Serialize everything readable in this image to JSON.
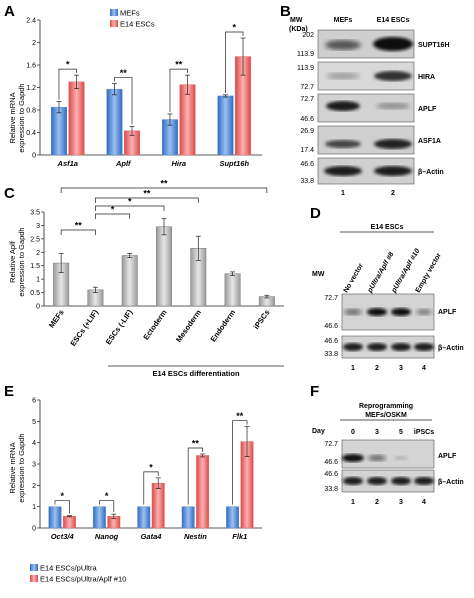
{
  "panels": {
    "A": {
      "label": "A",
      "ylabel_lines": [
        "Relative mRNA",
        "expression to Gapdh"
      ],
      "legend": [
        "MEFs",
        "E14 ESCs"
      ],
      "colors": {
        "s1": "#5b8fd6",
        "s2": "#e86a6a"
      },
      "chart_data": {
        "type": "bar",
        "categories": [
          "Asf1a",
          "Aplf",
          "Hira",
          "Supt16h"
        ],
        "series": [
          {
            "name": "MEFs",
            "values": [
              0.85,
              1.17,
              0.63,
              1.05
            ],
            "err": [
              0.1,
              0.1,
              0.1,
              0.02
            ]
          },
          {
            "name": "E14 ESCs",
            "values": [
              1.3,
              0.43,
              1.25,
              1.75
            ],
            "err": [
              0.12,
              0.08,
              0.17,
              0.33
            ]
          }
        ],
        "ylim": [
          0,
          2.4
        ],
        "yticks": [
          "0",
          "0.4",
          "0.8",
          "1.2",
          "1.6",
          "2",
          "2.4"
        ],
        "significance": [
          "*",
          "**",
          "**",
          "*"
        ]
      }
    },
    "B": {
      "label": "B",
      "mw_header": [
        "MW",
        "(KDa)"
      ],
      "lanes": [
        "MEFs",
        "E14 ESCs"
      ],
      "lane_numbers": [
        "1",
        "2"
      ],
      "blots": [
        {
          "name": "SUPT16H",
          "mw": [
            "202",
            "113.9"
          ]
        },
        {
          "name": "HIRA",
          "mw": [
            "113.9",
            "72.7"
          ]
        },
        {
          "name": "APLF",
          "mw": [
            "72.7",
            "46.6"
          ]
        },
        {
          "name": "ASF1A",
          "mw": [
            "26.9",
            "17.4"
          ]
        },
        {
          "name": "β–Actin",
          "mw": [
            "46.6",
            "33.8"
          ]
        }
      ]
    },
    "C": {
      "label": "C",
      "ylabel_lines": [
        "Relative Aplf",
        "expression to Gapdh"
      ],
      "color": "#c8c8c8",
      "group_label": "E14 ESCs differentiation",
      "chart_data": {
        "type": "bar",
        "categories": [
          "MEFs",
          "ESCs (+LIF)",
          "ESCs (-LIF)",
          "Ectoderm",
          "Mesoderm",
          "Endoderm",
          "iPSCs"
        ],
        "values": [
          1.6,
          0.6,
          1.88,
          2.95,
          2.15,
          1.2,
          0.35
        ],
        "err": [
          0.35,
          0.1,
          0.08,
          0.3,
          0.45,
          0.07,
          0.05
        ],
        "ylim": [
          0,
          3.5
        ],
        "yticks": [
          "0",
          "0.5",
          "1",
          "1.5",
          "2",
          "2.5",
          "3",
          "3.5"
        ],
        "significance": [
          {
            "pair": [
              0,
              1
            ],
            "label": "**"
          },
          {
            "pair": [
              1,
              2
            ],
            "label": "*"
          },
          {
            "pair": [
              1,
              3
            ],
            "label": "*"
          },
          {
            "pair": [
              1,
              4
            ],
            "label": "**"
          },
          {
            "pair": [
              0,
              6
            ],
            "label": "**"
          }
        ]
      }
    },
    "D": {
      "label": "D",
      "group": "E14 ESCs",
      "mw_header": "MW",
      "lanes": [
        "No vector",
        "pUltra/Aplf #8",
        "pUltra/Aplf #10",
        "Empty vector"
      ],
      "lane_numbers": [
        "1",
        "2",
        "3",
        "4"
      ],
      "blots": [
        {
          "name": "APLF",
          "mw": [
            "72.7",
            "46.6"
          ]
        },
        {
          "name": "β–Actin",
          "mw": [
            "46.6",
            "33.8"
          ]
        }
      ]
    },
    "E": {
      "label": "E",
      "ylabel_lines": [
        "Relative mRNA",
        "expression to Gapdh"
      ],
      "legend": [
        "E14 ESCs/pUltra",
        "E14 ESCs/pUltra/Aplf #10"
      ],
      "colors": {
        "s1": "#5b8fd6",
        "s2": "#e86a6a"
      },
      "chart_data": {
        "type": "bar",
        "categories": [
          "Oct3/4",
          "Nanog",
          "Gata4",
          "Nestin",
          "Flk1"
        ],
        "series": [
          {
            "name": "E14 ESCs/pUltra",
            "values": [
              1,
              1,
              1,
              1,
              1
            ],
            "err": [
              0,
              0,
              0,
              0,
              0
            ]
          },
          {
            "name": "E14 ESCs/pUltra/Aplf #10",
            "values": [
              0.55,
              0.55,
              2.1,
              3.4,
              4.05
            ],
            "err": [
              0.03,
              0.1,
              0.25,
              0.07,
              0.7
            ]
          }
        ],
        "ylim": [
          0,
          6
        ],
        "yticks": [
          "0",
          "1",
          "2",
          "3",
          "4",
          "5",
          "6"
        ],
        "significance": [
          "*",
          "*",
          "*",
          "**",
          "**"
        ]
      }
    },
    "F": {
      "label": "F",
      "title_lines": [
        "Reprogramming",
        "MEFs/OSKM"
      ],
      "day_label": "Day",
      "lanes": [
        "0",
        "3",
        "5",
        "iPSCs"
      ],
      "lane_numbers": [
        "1",
        "2",
        "3",
        "4"
      ],
      "blots": [
        {
          "name": "APLF",
          "mw": [
            "72.7",
            "46.6"
          ]
        },
        {
          "name": "β–Actin",
          "mw": [
            "46.6",
            "33.8"
          ]
        }
      ]
    }
  }
}
